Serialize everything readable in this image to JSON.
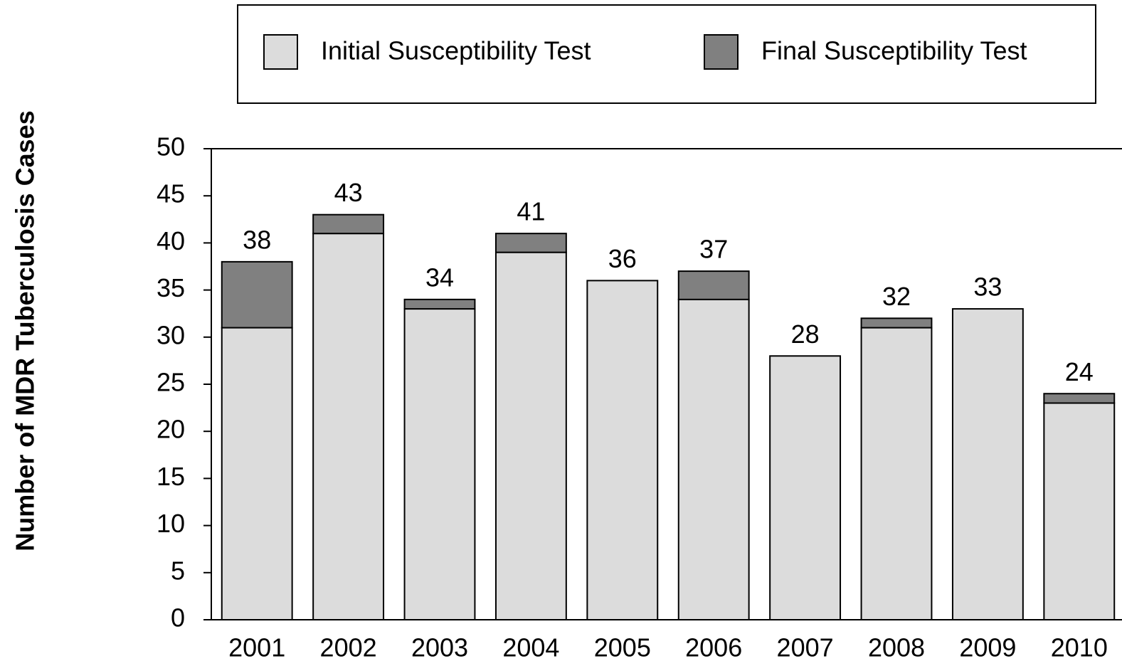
{
  "chart_data": {
    "type": "stacked_bar",
    "y_label": "Number of MDR Tuberculosis Cases",
    "categories": [
      "2001",
      "2002",
      "2003",
      "2004",
      "2005",
      "2006",
      "2007",
      "2008",
      "2009",
      "2010"
    ],
    "series": [
      {
        "name": "Initial Susceptibility Test",
        "color": "#dcdcdc",
        "values": [
          31,
          41,
          33,
          39,
          36,
          34,
          28,
          31,
          33,
          23
        ]
      },
      {
        "name": "Final Susceptibility Test",
        "color": "#808080",
        "values": [
          7,
          2,
          1,
          2,
          0,
          3,
          0,
          1,
          0,
          1
        ]
      }
    ],
    "total_labels": [
      38,
      43,
      34,
      41,
      36,
      37,
      28,
      32,
      33,
      24
    ],
    "ylim": [
      0,
      50
    ],
    "yticks": [
      0,
      5,
      10,
      15,
      20,
      25,
      30,
      35,
      40,
      45,
      50
    ],
    "legend": "top"
  }
}
